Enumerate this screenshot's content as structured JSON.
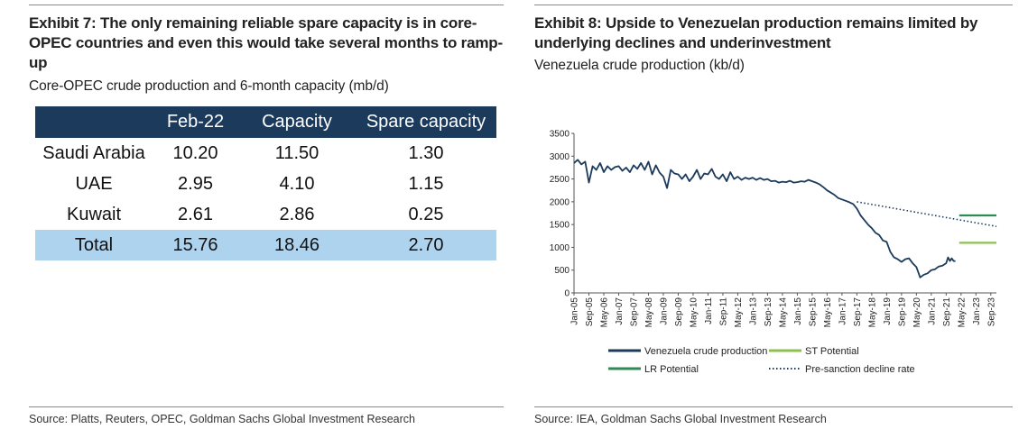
{
  "left": {
    "title": "Exhibit 7: The only remaining reliable spare capacity is in core-OPEC countries and even this would take several months to ramp-up",
    "subtitle": "Core-OPEC crude production and 6-month capacity (mb/d)",
    "source": "Source: Platts, Reuters, OPEC, Goldman Sachs Global Investment Research",
    "header_fill": "#1b3a5c",
    "total_fill": "#aed3ee",
    "table": {
      "headers": [
        "",
        "Feb-22",
        "Capacity",
        "Spare capacity"
      ],
      "rows": [
        [
          "Saudi Arabia",
          "10.20",
          "11.50",
          "1.30"
        ],
        [
          "UAE",
          "2.95",
          "4.10",
          "1.15"
        ],
        [
          "Kuwait",
          "2.61",
          "2.86",
          "0.25"
        ],
        [
          "Total",
          "15.76",
          "18.46",
          "2.70"
        ]
      ]
    }
  },
  "right": {
    "title": "Exhibit 8: Upside to Venezuelan production remains limited by underlying declines and underinvestment",
    "subtitle": "Venezuela crude production (kb/d)",
    "source": "Source: IEA, Goldman Sachs Global Investment Research"
  },
  "chart_data": {
    "type": "line",
    "y_ticks": [
      "0",
      "500",
      "1000",
      "1500",
      "2000",
      "2500",
      "3000",
      "3500"
    ],
    "ylim": [
      0,
      3500
    ],
    "x_ticks": [
      "Jan-05",
      "Sep-05",
      "May-06",
      "Jan-07",
      "Sep-07",
      "May-08",
      "Jan-09",
      "Sep-09",
      "May-10",
      "Jan-11",
      "Sep-11",
      "May-12",
      "Jan-13",
      "Sep-13",
      "May-14",
      "Jan-15",
      "Sep-15",
      "May-16",
      "Jan-17",
      "Sep-17",
      "May-18",
      "Jan-19",
      "Sep-19",
      "May-20",
      "Jan-21",
      "Sep-21",
      "May-22",
      "Jan-23",
      "Sep-23"
    ],
    "grid": false,
    "legend_position": "bottom",
    "series": [
      {
        "name": "Venezuela crude production",
        "color": "#1b3a5c",
        "style": "solid",
        "points": [
          [
            "Jan-05",
            2850
          ],
          [
            "Mar-05",
            2920
          ],
          [
            "May-05",
            2820
          ],
          [
            "Jul-05",
            2880
          ],
          [
            "Sep-05",
            2420
          ],
          [
            "Nov-05",
            2780
          ],
          [
            "Jan-06",
            2700
          ],
          [
            "Mar-06",
            2850
          ],
          [
            "May-06",
            2650
          ],
          [
            "Jul-06",
            2780
          ],
          [
            "Sep-06",
            2700
          ],
          [
            "Nov-06",
            2760
          ],
          [
            "Jan-07",
            2780
          ],
          [
            "Mar-07",
            2680
          ],
          [
            "May-07",
            2750
          ],
          [
            "Jul-07",
            2650
          ],
          [
            "Sep-07",
            2800
          ],
          [
            "Nov-07",
            2720
          ],
          [
            "Jan-08",
            2850
          ],
          [
            "Mar-08",
            2700
          ],
          [
            "May-08",
            2880
          ],
          [
            "Jul-08",
            2600
          ],
          [
            "Sep-08",
            2800
          ],
          [
            "Nov-08",
            2640
          ],
          [
            "Jan-09",
            2550
          ],
          [
            "Mar-09",
            2300
          ],
          [
            "May-09",
            2700
          ],
          [
            "Jul-09",
            2620
          ],
          [
            "Sep-09",
            2600
          ],
          [
            "Nov-09",
            2500
          ],
          [
            "Jan-10",
            2600
          ],
          [
            "Mar-10",
            2450
          ],
          [
            "May-10",
            2550
          ],
          [
            "Jul-10",
            2700
          ],
          [
            "Sep-10",
            2500
          ],
          [
            "Nov-10",
            2620
          ],
          [
            "Jan-11",
            2600
          ],
          [
            "Mar-11",
            2720
          ],
          [
            "May-11",
            2550
          ],
          [
            "Jul-11",
            2500
          ],
          [
            "Sep-11",
            2600
          ],
          [
            "Nov-11",
            2450
          ],
          [
            "Jan-12",
            2650
          ],
          [
            "Mar-12",
            2500
          ],
          [
            "May-12",
            2550
          ],
          [
            "Jul-12",
            2480
          ],
          [
            "Sep-12",
            2530
          ],
          [
            "Nov-12",
            2500
          ],
          [
            "Jan-13",
            2530
          ],
          [
            "Mar-13",
            2480
          ],
          [
            "May-13",
            2520
          ],
          [
            "Jul-13",
            2480
          ],
          [
            "Sep-13",
            2500
          ],
          [
            "Nov-13",
            2450
          ],
          [
            "Jan-14",
            2460
          ],
          [
            "Mar-14",
            2420
          ],
          [
            "May-14",
            2440
          ],
          [
            "Jul-14",
            2430
          ],
          [
            "Sep-14",
            2460
          ],
          [
            "Nov-14",
            2420
          ],
          [
            "Jan-15",
            2430
          ],
          [
            "Mar-15",
            2450
          ],
          [
            "May-15",
            2440
          ],
          [
            "Jul-15",
            2480
          ],
          [
            "Sep-15",
            2450
          ],
          [
            "Nov-15",
            2420
          ],
          [
            "Jan-16",
            2380
          ],
          [
            "Mar-16",
            2320
          ],
          [
            "May-16",
            2250
          ],
          [
            "Jul-16",
            2200
          ],
          [
            "Sep-16",
            2150
          ],
          [
            "Nov-16",
            2080
          ],
          [
            "Jan-17",
            2050
          ],
          [
            "Mar-17",
            2020
          ],
          [
            "May-17",
            1990
          ],
          [
            "Jul-17",
            1950
          ],
          [
            "Sep-17",
            1850
          ],
          [
            "Nov-17",
            1700
          ],
          [
            "Jan-18",
            1600
          ],
          [
            "Mar-18",
            1500
          ],
          [
            "May-18",
            1420
          ],
          [
            "Jul-18",
            1320
          ],
          [
            "Sep-18",
            1270
          ],
          [
            "Nov-18",
            1150
          ],
          [
            "Jan-19",
            1120
          ],
          [
            "Mar-19",
            900
          ],
          [
            "May-19",
            780
          ],
          [
            "Jul-19",
            740
          ],
          [
            "Sep-19",
            680
          ],
          [
            "Nov-19",
            740
          ],
          [
            "Jan-20",
            760
          ],
          [
            "Mar-20",
            650
          ],
          [
            "May-20",
            570
          ],
          [
            "Jul-20",
            340
          ],
          [
            "Sep-20",
            400
          ],
          [
            "Nov-20",
            430
          ],
          [
            "Jan-21",
            500
          ],
          [
            "Mar-21",
            520
          ],
          [
            "May-21",
            580
          ],
          [
            "Jul-21",
            600
          ],
          [
            "Sep-21",
            650
          ],
          [
            "Oct-21",
            780
          ],
          [
            "Nov-21",
            700
          ],
          [
            "Dec-21",
            760
          ],
          [
            "Jan-22",
            700
          ],
          [
            "Feb-22",
            700
          ]
        ]
      },
      {
        "name": "ST Potential",
        "color": "#8cc152",
        "style": "solid",
        "points": [
          [
            "Apr-22",
            1100
          ],
          [
            "Dec-23",
            1100
          ]
        ]
      },
      {
        "name": "LR Potential",
        "color": "#2e8b57",
        "style": "solid",
        "points": [
          [
            "Apr-22",
            1700
          ],
          [
            "Dec-23",
            1700
          ]
        ]
      },
      {
        "name": "Pre-sanction decline rate",
        "color": "#1b3a5c",
        "style": "dotted",
        "points": [
          [
            "Sep-17",
            2000
          ],
          [
            "Dec-23",
            1460
          ]
        ]
      }
    ]
  }
}
